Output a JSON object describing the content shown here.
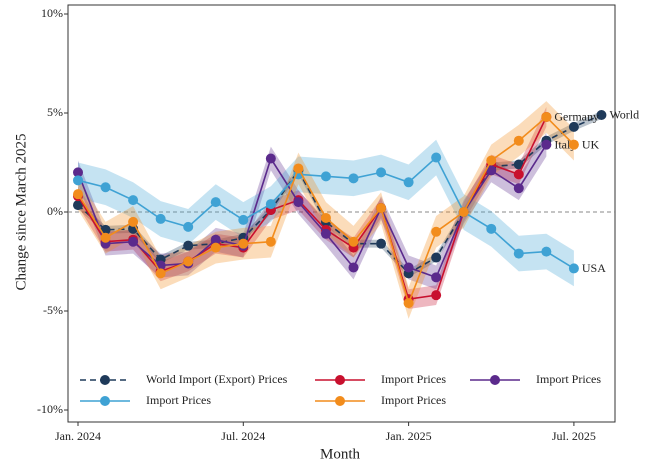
{
  "chart_data": {
    "type": "line",
    "x_label": "Month",
    "y_label": "Change since March 2025",
    "categories": [
      "Jan. 2024",
      null,
      null,
      null,
      null,
      null,
      "Jul. 2024",
      null,
      null,
      null,
      null,
      null,
      "Jan. 2025",
      null,
      null,
      null,
      null,
      null,
      "Jul. 2025",
      null
    ],
    "ylim": [
      -10,
      10
    ],
    "yticks": [
      {
        "value": -10,
        "label": "-10%"
      },
      {
        "value": -5,
        "label": "-5%"
      },
      {
        "value": 0,
        "label": "0%"
      },
      {
        "value": 5,
        "label": "5%"
      },
      {
        "value": 10,
        "label": "10%"
      }
    ],
    "zero_line": true,
    "series": [
      {
        "name": "World Import (Export) Prices",
        "end_label": "World",
        "color": "#1f3a5a",
        "dash": true,
        "ci_halfwidth": 0.2,
        "values": [
          0.35,
          -0.9,
          -0.85,
          -2.4,
          -1.7,
          -1.6,
          -1.3,
          0.1,
          2.1,
          -0.5,
          -1.6,
          -1.6,
          -3.1,
          -2.3,
          0,
          2.3,
          2.4,
          3.6,
          4.3,
          4.9
        ]
      },
      {
        "name": "Import Prices",
        "end_label": "Germany",
        "color": "#c8102e",
        "dash": false,
        "ci_halfwidth": 0.5,
        "values": [
          0.8,
          -1.5,
          -1.4,
          -3.0,
          -2.5,
          -1.6,
          -1.8,
          0.1,
          0.6,
          -0.9,
          -1.8,
          0.2,
          -4.4,
          -4.2,
          0,
          2.4,
          1.9,
          4.8,
          null,
          null
        ]
      },
      {
        "name": "Import Prices",
        "end_label": "Italy",
        "color": "#5b2a8c",
        "dash": false,
        "ci_halfwidth": 0.6,
        "values": [
          2.0,
          -1.6,
          -1.5,
          -2.7,
          -2.6,
          -1.4,
          -1.7,
          2.7,
          0.5,
          -1.1,
          -2.8,
          0.2,
          -2.8,
          -3.3,
          0,
          2.1,
          1.2,
          3.4,
          null,
          null
        ]
      },
      {
        "name": "Import Prices",
        "end_label": "USA",
        "color": "#3fa2d4",
        "dash": false,
        "ci_halfwidth": 0.9,
        "values": [
          1.6,
          1.25,
          0.6,
          -0.35,
          -0.75,
          0.5,
          -0.4,
          0.4,
          1.9,
          1.8,
          1.7,
          2.0,
          1.5,
          2.75,
          0,
          -0.85,
          -2.1,
          -2.0,
          -2.85,
          null
        ]
      },
      {
        "name": "Import Prices",
        "end_label": "UK",
        "color": "#f28c1c",
        "dash": false,
        "ci_halfwidth": 0.8,
        "values": [
          0.9,
          -1.3,
          -0.5,
          -3.1,
          -2.5,
          -1.8,
          -1.6,
          -1.5,
          2.2,
          -0.3,
          -1.5,
          0.2,
          -4.6,
          -1.0,
          0,
          2.6,
          3.6,
          4.8,
          3.4,
          null
        ]
      }
    ]
  }
}
